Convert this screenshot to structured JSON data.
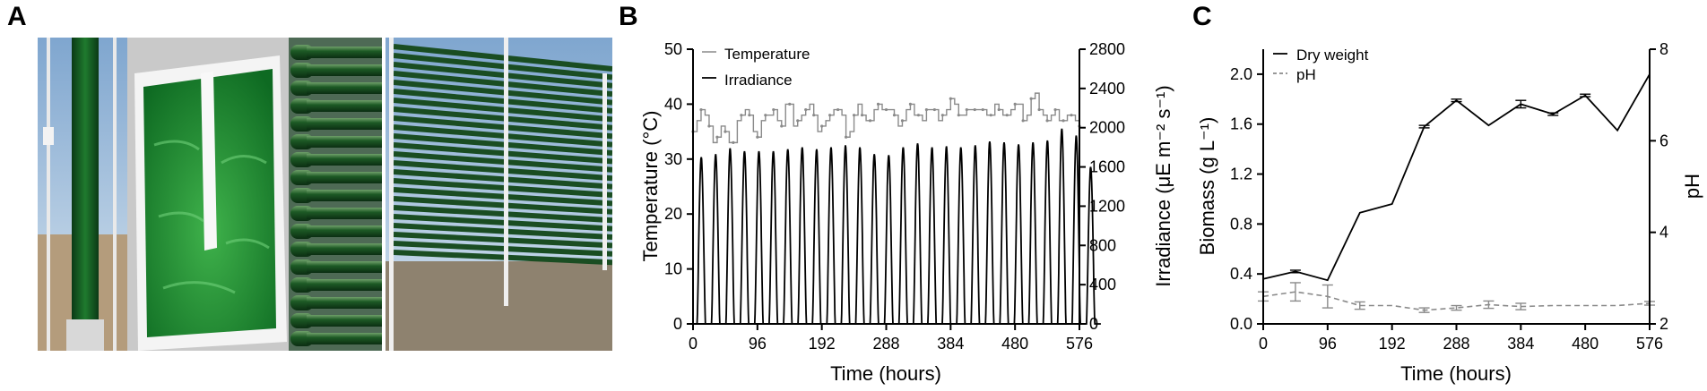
{
  "panels": {
    "a": "A",
    "b": "B",
    "c": "C"
  },
  "photos": {
    "sky": "#a9c3dc",
    "algae_green": "#1d8a2c",
    "algae_dark": "#0f4a1f",
    "ground": "#9a8a72",
    "frame": "#e6e6e6"
  },
  "chart_data": [
    {
      "type": "line",
      "xlabel": "Time (hours)",
      "ylabel_left": "Temperature (°C)",
      "ylabel_right": "Irradiance (μE m⁻² s⁻¹)",
      "x_ticks": [
        "0",
        "96",
        "192",
        "288",
        "384",
        "480",
        "576"
      ],
      "y_left_ticks": [
        "0",
        "10",
        "20",
        "30",
        "40",
        "50"
      ],
      "y_right_ticks": [
        "0",
        "400",
        "800",
        "1200",
        "1600",
        "2000",
        "2400",
        "2800"
      ],
      "xlim": [
        0,
        576
      ],
      "ylim_left": [
        0,
        50
      ],
      "ylim_right": [
        0,
        2800
      ],
      "legend": [
        "Temperature",
        "Irradiance"
      ],
      "legend_position": "top-left",
      "irradiance_daily_peak": [
        1700,
        1730,
        1790,
        1760,
        1760,
        1760,
        1780,
        1800,
        1780,
        1800,
        1820,
        1800,
        1730,
        1720,
        1800,
        1840,
        1800,
        1810,
        1800,
        1820,
        1860,
        1850,
        1830,
        1850,
        1870,
        1990,
        1920,
        1600
      ],
      "temperature_series": {
        "x": [
          0,
          6,
          12,
          18,
          24,
          30,
          36,
          42,
          48,
          54,
          60,
          66,
          72,
          78,
          84,
          90,
          96,
          102,
          108,
          114,
          120,
          126,
          132,
          138,
          144,
          150,
          156,
          162,
          168,
          174,
          180,
          186,
          192,
          198,
          204,
          210,
          216,
          222,
          228,
          234,
          240,
          246,
          252,
          258,
          264,
          270,
          276,
          282,
          288,
          294,
          300,
          306,
          312,
          318,
          324,
          330,
          336,
          342,
          348,
          354,
          360,
          366,
          372,
          378,
          384,
          390,
          396,
          402,
          408,
          414,
          420,
          426,
          432,
          438,
          444,
          450,
          456,
          462,
          468,
          474,
          480,
          486,
          492,
          498,
          504,
          510,
          516,
          522,
          528,
          534,
          540,
          546,
          552,
          558,
          564,
          570,
          576
        ],
        "y": [
          35,
          37,
          39,
          38,
          36,
          33,
          34,
          36,
          35,
          33,
          33,
          37,
          38,
          39,
          38,
          35,
          34,
          37,
          38,
          38,
          39,
          37,
          36,
          40,
          40,
          36,
          37,
          38,
          39,
          40,
          38,
          35,
          36,
          37,
          38,
          39,
          39,
          38,
          34,
          35,
          38,
          40,
          38,
          37,
          37,
          39,
          40,
          39,
          39,
          39,
          38,
          36,
          37,
          39,
          40,
          38,
          38,
          37,
          39,
          39,
          39,
          37,
          38,
          39,
          41,
          40,
          38,
          38,
          39,
          39,
          39,
          39,
          39,
          38,
          38,
          40,
          39,
          38,
          38,
          39,
          40,
          40,
          37,
          38,
          41,
          42,
          39,
          38,
          37,
          38,
          39,
          37,
          37,
          38,
          38,
          37,
          36
        ]
      }
    },
    {
      "type": "line",
      "xlabel": "Time (hours)",
      "ylabel_left": "Biomass (g L⁻¹)",
      "ylabel_right": "pH",
      "x_ticks": [
        "0",
        "96",
        "192",
        "288",
        "384",
        "480",
        "576"
      ],
      "y_left_ticks": [
        "0.0",
        "0.4",
        "0.8",
        "1.2",
        "1.6",
        "2.0"
      ],
      "y_right_ticks": [
        "2",
        "4",
        "6",
        "8"
      ],
      "xlim": [
        0,
        576
      ],
      "ylim_left": [
        0,
        2.2
      ],
      "ylim_right": [
        2,
        8
      ],
      "legend": [
        "Dry weight",
        "pH"
      ],
      "legend_position": "top-left",
      "series": [
        {
          "name": "Dry weight",
          "x": [
            0,
            48,
            96,
            144,
            192,
            240,
            288,
            336,
            384,
            432,
            480,
            528,
            576
          ],
          "y": [
            0.36,
            0.42,
            0.35,
            0.89,
            0.96,
            1.58,
            1.79,
            1.59,
            1.76,
            1.68,
            1.83,
            1.55,
            2.0
          ],
          "err": [
            0.0,
            0.01,
            0.0,
            0.0,
            0.0,
            0.01,
            0.01,
            0.0,
            0.03,
            0.01,
            0.01,
            0.0,
            0.0
          ]
        },
        {
          "name": "pH",
          "x": [
            0,
            48,
            96,
            144,
            192,
            240,
            288,
            336,
            384,
            432,
            480,
            528,
            576
          ],
          "y": [
            2.6,
            2.7,
            2.6,
            2.4,
            2.4,
            2.3,
            2.35,
            2.42,
            2.38,
            2.4,
            2.4,
            2.4,
            2.45
          ],
          "err": [
            0.1,
            0.2,
            0.25,
            0.08,
            0.0,
            0.05,
            0.05,
            0.08,
            0.07,
            0.0,
            0.0,
            0.0,
            0.04
          ]
        }
      ]
    }
  ]
}
